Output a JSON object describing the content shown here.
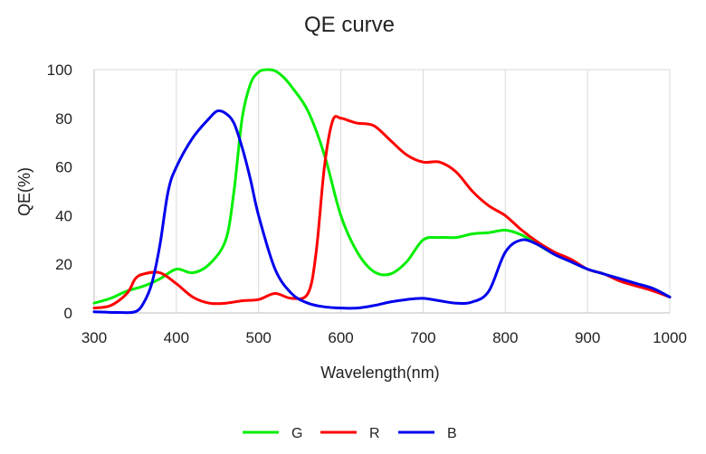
{
  "chart_data": {
    "type": "line",
    "title": "QE curve",
    "xlabel": "Wavelength(nm)",
    "ylabel": "QE(%)",
    "xlim": [
      300,
      1000
    ],
    "ylim": [
      0,
      100
    ],
    "x_ticks": [
      300,
      400,
      500,
      600,
      700,
      800,
      900,
      1000
    ],
    "y_ticks": [
      0,
      20,
      40,
      60,
      80,
      100
    ],
    "grid": "vertical",
    "legend": "bottom",
    "series": [
      {
        "name": "G",
        "color": "#00ee00",
        "x": [
          300,
          320,
          340,
          360,
          380,
          400,
          420,
          440,
          460,
          470,
          480,
          490,
          500,
          510,
          520,
          530,
          540,
          560,
          580,
          600,
          620,
          640,
          660,
          680,
          700,
          720,
          740,
          760,
          780,
          800,
          820,
          840,
          860,
          880,
          900,
          920,
          940,
          960,
          980,
          1000
        ],
        "y": [
          4,
          6,
          9,
          11,
          14,
          18,
          16.5,
          20,
          30,
          50,
          80,
          94,
          99,
          100,
          99.5,
          97,
          93,
          83,
          65,
          40,
          25,
          17,
          16,
          21,
          30,
          31,
          31,
          32.5,
          33,
          34,
          32,
          28,
          24,
          21,
          18,
          16,
          14,
          12,
          10,
          6.5
        ]
      },
      {
        "name": "R",
        "color": "#ff0000",
        "x": [
          300,
          320,
          340,
          350,
          360,
          380,
          400,
          420,
          440,
          460,
          480,
          500,
          520,
          540,
          560,
          570,
          580,
          590,
          600,
          610,
          620,
          640,
          660,
          680,
          700,
          720,
          740,
          760,
          780,
          800,
          820,
          840,
          860,
          880,
          900,
          920,
          940,
          960,
          980,
          1000
        ],
        "y": [
          2,
          3,
          8,
          14,
          16,
          16.5,
          12,
          6.5,
          4,
          4,
          5,
          5.5,
          8,
          6,
          8,
          25,
          60,
          79,
          80,
          79,
          78,
          77,
          71,
          65,
          62,
          62,
          58,
          50,
          44,
          40,
          34,
          29,
          25,
          22,
          18,
          16,
          13,
          11,
          9,
          6.5
        ]
      },
      {
        "name": "B",
        "color": "#0000ee",
        "x": [
          300,
          330,
          350,
          360,
          370,
          380,
          390,
          400,
          420,
          440,
          450,
          460,
          470,
          480,
          490,
          500,
          520,
          540,
          560,
          580,
          600,
          620,
          640,
          660,
          680,
          700,
          720,
          740,
          760,
          780,
          800,
          820,
          840,
          860,
          880,
          900,
          920,
          940,
          960,
          980,
          1000
        ],
        "y": [
          0.5,
          0.2,
          0.5,
          4,
          12,
          28,
          50,
          60,
          72,
          80,
          83,
          82,
          78,
          68,
          55,
          40,
          18,
          8,
          4,
          2.5,
          2,
          2,
          3,
          4.5,
          5.5,
          6,
          5,
          4,
          4.5,
          9,
          25,
          30,
          28,
          24,
          21,
          18,
          16,
          14,
          12,
          10,
          6.5
        ]
      }
    ]
  }
}
